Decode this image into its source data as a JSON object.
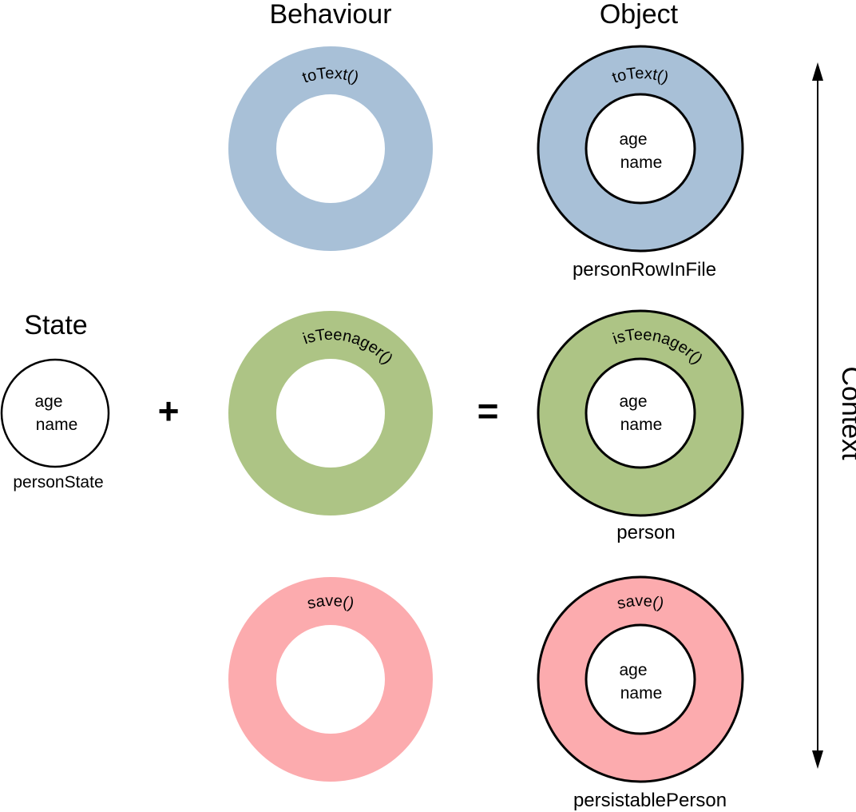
{
  "headings": {
    "state": "State",
    "behaviour": "Behaviour",
    "object": "Object",
    "context": "Context"
  },
  "operators": {
    "plus": "+",
    "equals": "="
  },
  "state": {
    "fields": [
      "age",
      "name"
    ],
    "caption": "personState"
  },
  "colors": {
    "blue": "#a8c0d7",
    "green": "#adc485",
    "red": "#fcabae",
    "outline": "#000000"
  },
  "behaviours": [
    {
      "method": "toText()",
      "color_key": "blue"
    },
    {
      "method": "isTeenager()",
      "color_key": "green"
    },
    {
      "method": "save()",
      "color_key": "red"
    }
  ],
  "objects": [
    {
      "method": "toText()",
      "fields": [
        "age",
        "name"
      ],
      "caption": "personRowInFile",
      "color_key": "blue"
    },
    {
      "method": "isTeenager()",
      "fields": [
        "age",
        "name"
      ],
      "caption": "person",
      "color_key": "green"
    },
    {
      "method": "save()",
      "fields": [
        "age",
        "name"
      ],
      "caption": "persistablePerson",
      "color_key": "red"
    }
  ]
}
